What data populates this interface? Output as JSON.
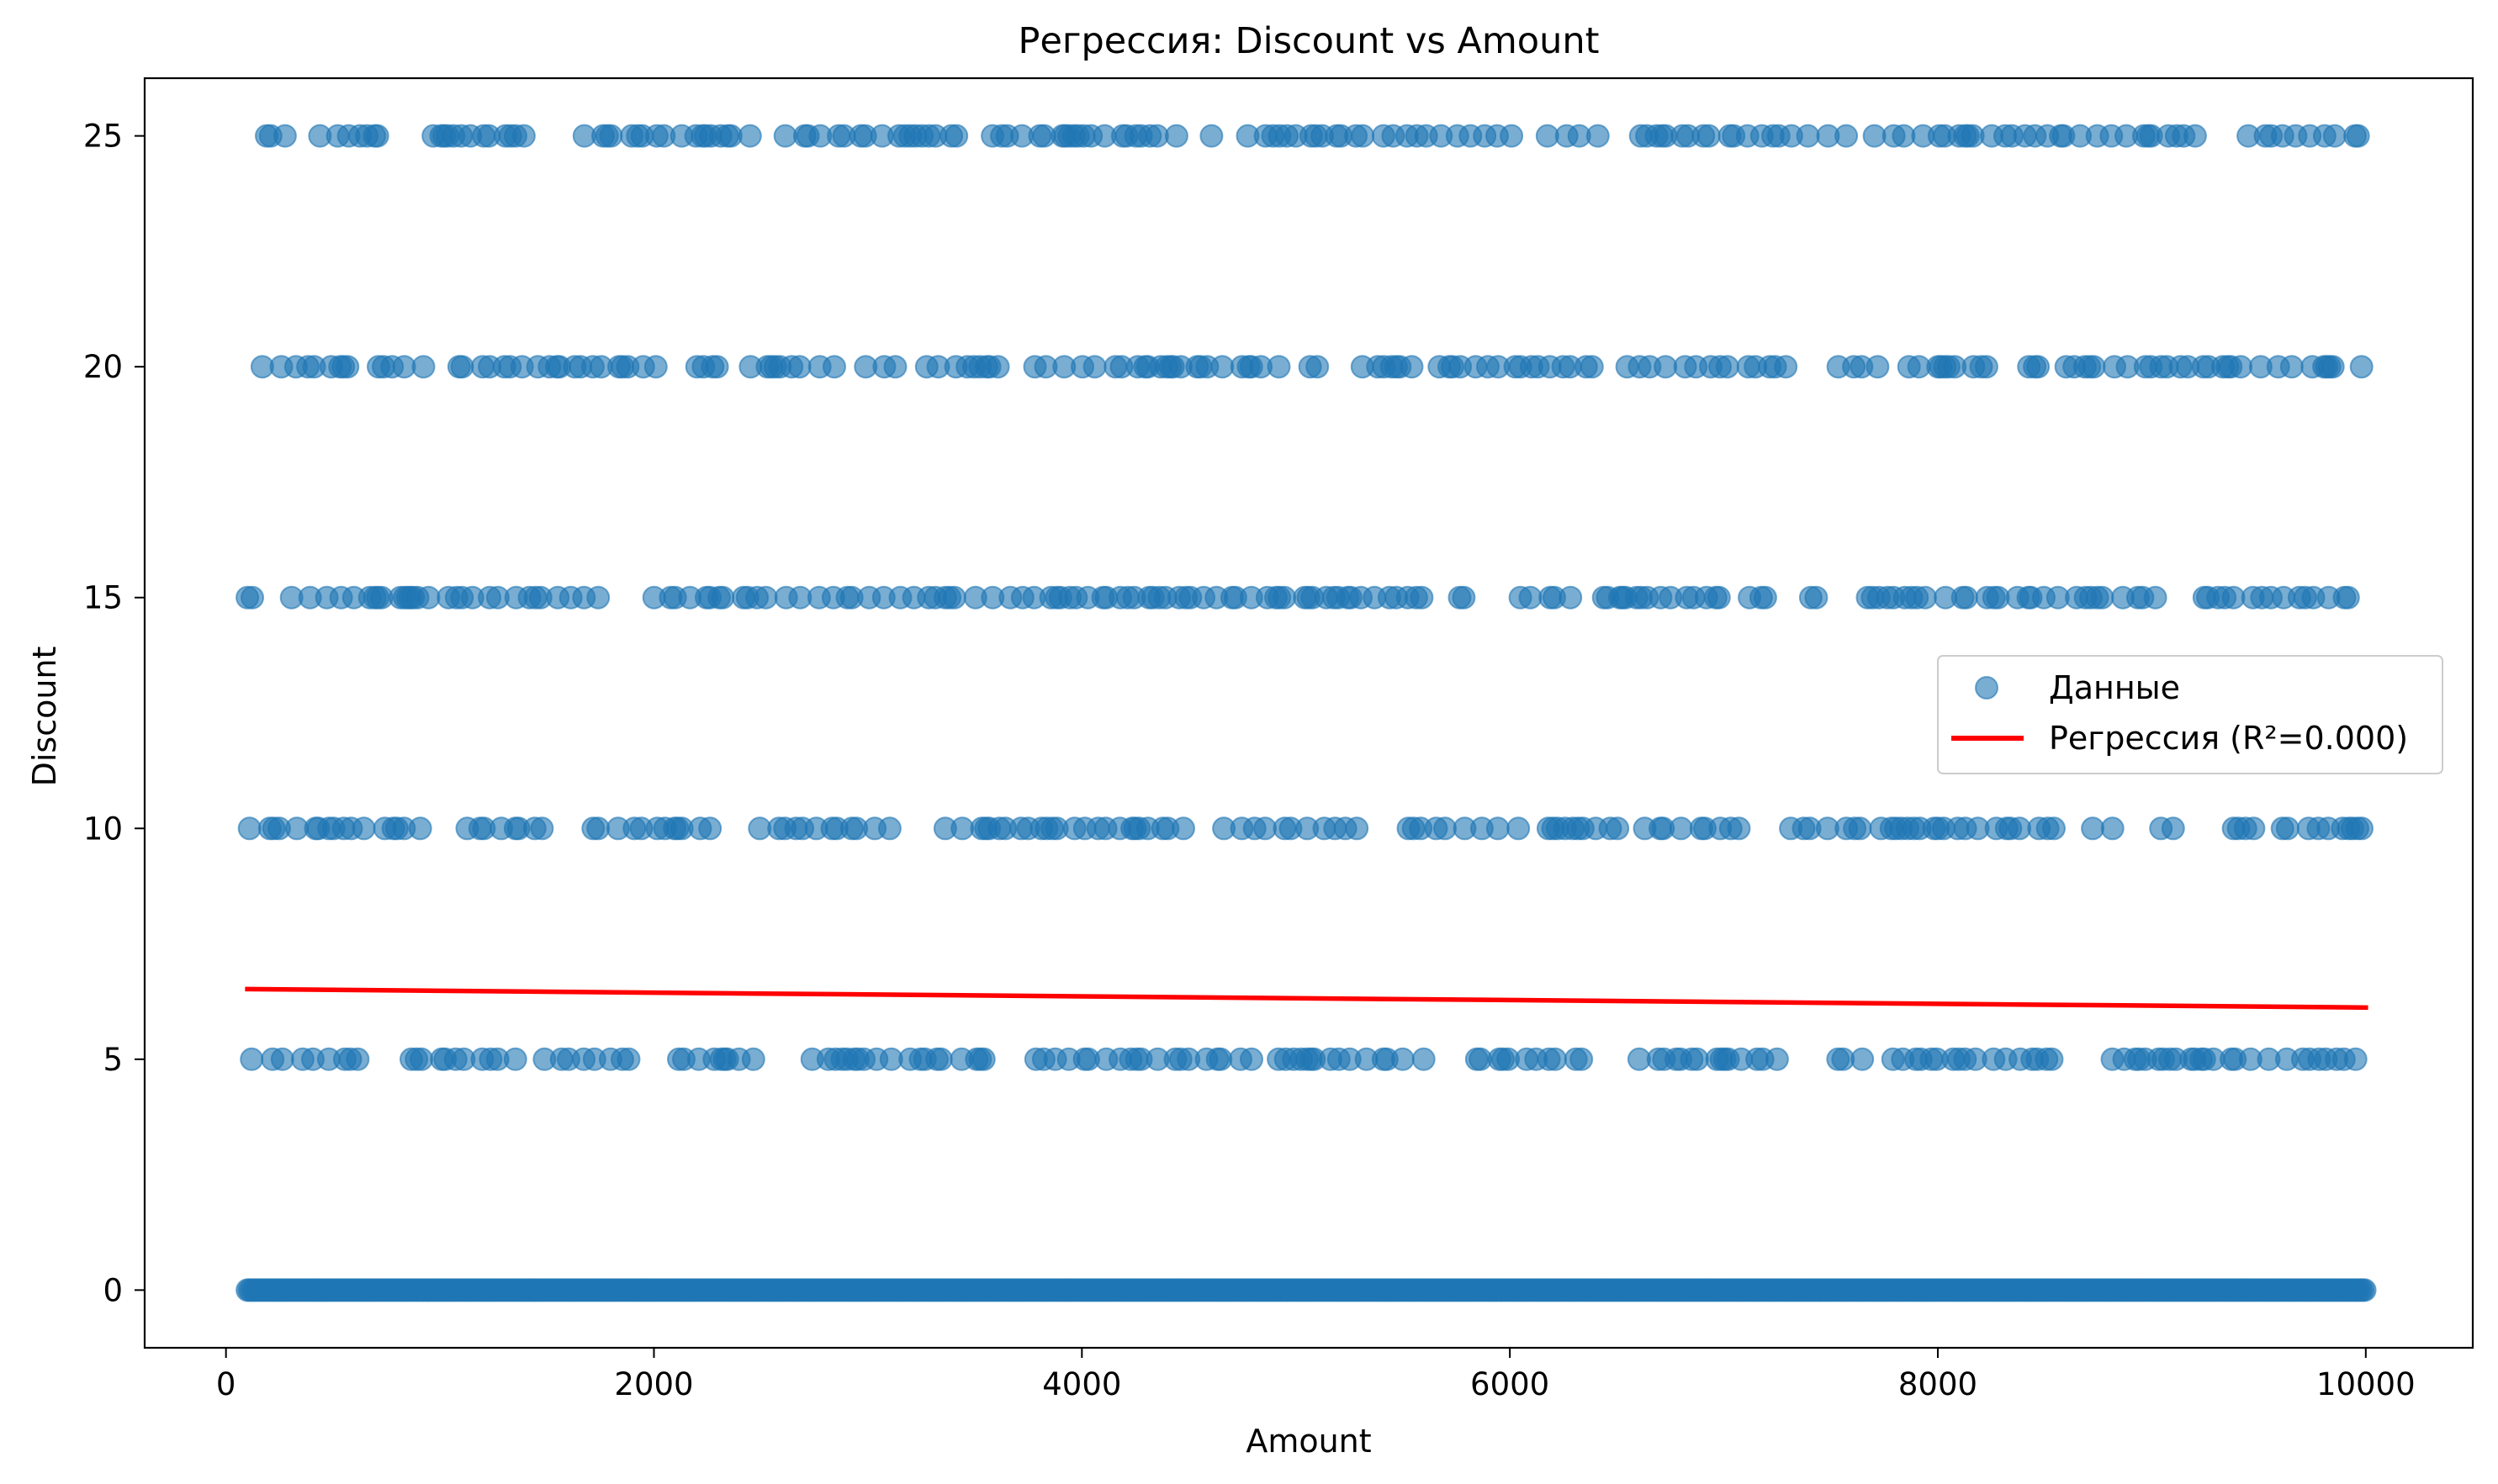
{
  "chart_data": {
    "type": "scatter",
    "title": "Регрессия: Discount vs Amount",
    "xlabel": "Amount",
    "ylabel": "Discount",
    "xlim": [
      -380,
      10500
    ],
    "ylim": [
      -1.25,
      26.25
    ],
    "xticks": [
      0,
      2000,
      4000,
      6000,
      8000,
      10000
    ],
    "yticks": [
      0,
      5,
      10,
      15,
      20,
      25
    ],
    "grid": false,
    "legend_position": "center-right",
    "series": [
      {
        "name": "Данные",
        "kind": "scatter",
        "color": "#1f77b4",
        "alpha": 0.6,
        "rows": [
          {
            "y": 0,
            "x_min": 100,
            "x_max": 10000,
            "density": "continuous"
          },
          {
            "y": 5,
            "x_min": 120,
            "x_max": 9990,
            "density": "dense"
          },
          {
            "y": 10,
            "x_min": 110,
            "x_max": 10000,
            "density": "dense"
          },
          {
            "y": 15,
            "x_min": 100,
            "x_max": 9930,
            "density": "dense"
          },
          {
            "y": 20,
            "x_min": 170,
            "x_max": 9990,
            "density": "dense"
          },
          {
            "y": 25,
            "x_min": 190,
            "x_max": 9990,
            "density": "dense"
          }
        ]
      },
      {
        "name": "Регрессия (R²=0.000)",
        "kind": "line",
        "color": "#ff0000",
        "x": [
          100,
          10000
        ],
        "y": [
          6.52,
          6.12
        ]
      }
    ]
  }
}
